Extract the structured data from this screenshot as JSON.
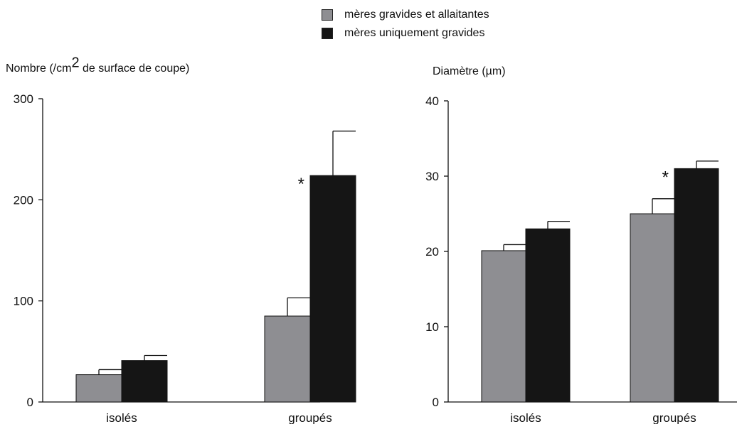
{
  "legend": [
    {
      "label": "mères gravides et allaitantes",
      "color": "#8e8e92"
    },
    {
      "label": "mères uniquement gravides",
      "color": "#151515"
    }
  ],
  "chart_data": [
    {
      "type": "bar",
      "ylabel_pre": "Nombre (/cm",
      "ylabel_sup": "2",
      "ylabel_post": " de surface de coupe)",
      "categories": [
        "isolés",
        "groupés"
      ],
      "ylim": [
        0,
        300
      ],
      "yticks": [
        0,
        100,
        200,
        300
      ],
      "series": [
        {
          "name": "mères gravides et allaitantes",
          "values": [
            27,
            85
          ],
          "errors": [
            5,
            18
          ]
        },
        {
          "name": "mères uniquement gravides",
          "values": [
            41,
            224
          ],
          "errors": [
            5,
            44
          ]
        }
      ],
      "annotations": [
        {
          "text": "*",
          "category": 1
        }
      ]
    },
    {
      "type": "bar",
      "ylabel": "Diamètre (µm)",
      "categories": [
        "isolés",
        "groupés"
      ],
      "ylim": [
        0,
        40
      ],
      "yticks": [
        0,
        10,
        20,
        30,
        40
      ],
      "series": [
        {
          "name": "mères gravides et allaitantes",
          "values": [
            20.1,
            25
          ],
          "errors": [
            0.8,
            2
          ]
        },
        {
          "name": "mères uniquement gravides",
          "values": [
            23,
            31
          ],
          "errors": [
            1,
            1
          ]
        }
      ],
      "annotations": [
        {
          "text": "*",
          "category": 1
        }
      ]
    }
  ]
}
